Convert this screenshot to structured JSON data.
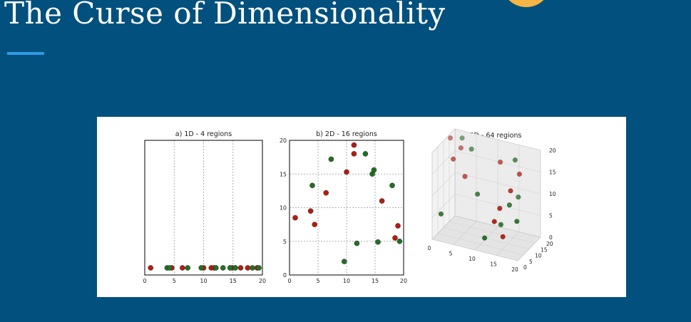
{
  "slide": {
    "title": "The Curse of Dimensionality"
  },
  "colors": {
    "background": "#02507d",
    "accent": "#2f9be6",
    "logo": "#f6b545",
    "red": "#b01e12",
    "green": "#246e24"
  },
  "chart_data": [
    {
      "type": "scatter",
      "title": "a) 1D - 4 regions",
      "xlim": [
        0,
        20
      ],
      "grid": true,
      "xticks": [
        "0",
        "5",
        "10",
        "15",
        "20"
      ],
      "series": [
        {
          "color": "red",
          "x": [
            1.0,
            4.6,
            6.4,
            10.0,
            11.3,
            11.8,
            14.9,
            16.3,
            17.5,
            19.1
          ]
        },
        {
          "color": "green",
          "x": [
            3.8,
            4.2,
            7.3,
            9.6,
            12.1,
            13.3,
            14.5,
            15.4,
            18.3,
            19.4
          ]
        }
      ]
    },
    {
      "type": "scatter",
      "title": "b) 2D - 16 regions",
      "xlim": [
        0,
        20
      ],
      "ylim": [
        0,
        20
      ],
      "grid": true,
      "xticks": [
        "0",
        "5",
        "10",
        "15",
        "20"
      ],
      "yticks": [
        "0",
        "5",
        "10",
        "15",
        "20"
      ],
      "series": [
        {
          "color": "red",
          "points": [
            [
              1.0,
              8.5
            ],
            [
              3.7,
              9.5
            ],
            [
              4.4,
              7.5
            ],
            [
              6.4,
              12.2
            ],
            [
              10.0,
              15.3
            ],
            [
              11.3,
              19.3
            ],
            [
              11.3,
              18.0
            ],
            [
              16.2,
              11.0
            ],
            [
              18.5,
              5.5
            ],
            [
              19.0,
              7.3
            ]
          ]
        },
        {
          "color": "green",
          "points": [
            [
              4.0,
              13.3
            ],
            [
              7.3,
              17.2
            ],
            [
              9.6,
              2.0
            ],
            [
              11.8,
              4.7
            ],
            [
              13.3,
              18.0
            ],
            [
              14.5,
              15.0
            ],
            [
              14.8,
              15.6
            ],
            [
              15.5,
              4.9
            ],
            [
              18.0,
              13.3
            ],
            [
              19.3,
              5.0
            ]
          ]
        }
      ]
    },
    {
      "type": "scatter3d",
      "title": "c) 3D - 64 regions",
      "axis_ticks": {
        "x": [
          "0",
          "5",
          "10",
          "15",
          "20"
        ],
        "y": [
          "0",
          "5",
          "10",
          "15",
          "20"
        ],
        "z": [
          "0",
          "5",
          "10",
          "15",
          "20"
        ]
      },
      "series": [
        {
          "color": "red",
          "points": [
            [
              0,
              16,
              19
            ],
            [
              3,
              14,
              18
            ],
            [
              2,
              11,
              16
            ],
            [
              5,
              10,
              13
            ],
            [
              13,
              11,
              18
            ],
            [
              18,
              9,
              17
            ],
            [
              17,
              5,
              14
            ],
            [
              15,
              3,
              10
            ],
            [
              14,
              2,
              7
            ],
            [
              16,
              2,
              4
            ]
          ]
        },
        {
          "color": "green",
          "points": [
            [
              3,
              15,
              20
            ],
            [
              6,
              12,
              19
            ],
            [
              17,
              9,
              20
            ],
            [
              9,
              6,
              11
            ],
            [
              18,
              8,
              12
            ],
            [
              17,
              4,
              11
            ],
            [
              1,
              4,
              5
            ],
            [
              15,
              4,
              6
            ],
            [
              12,
              1,
              3
            ],
            [
              19,
              3,
              8
            ]
          ]
        }
      ]
    }
  ]
}
